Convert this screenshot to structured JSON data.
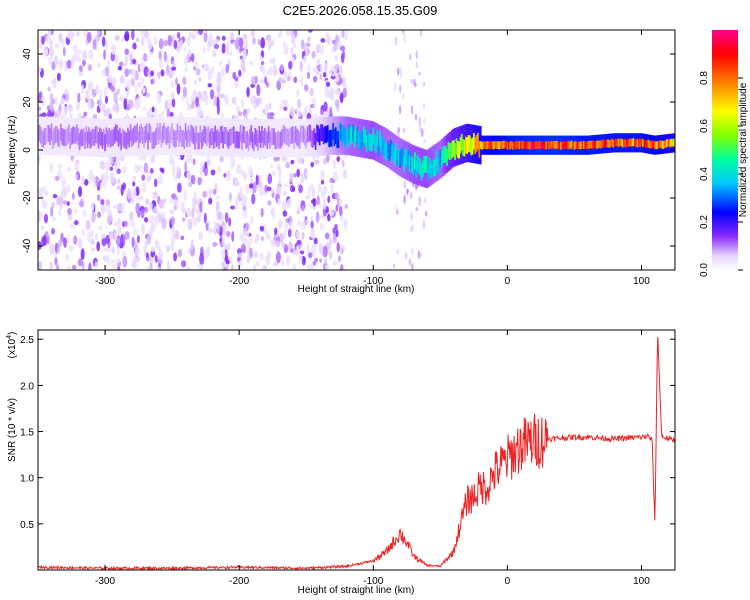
{
  "figure": {
    "title": "C2E5.2026.058.15.35.G09"
  },
  "chart_data": [
    {
      "type": "heatmap",
      "title": "C2E5.2026.058.15.35.G09",
      "xlabel": "Height of straight line (km)",
      "ylabel": "Frequency (Hz)",
      "xlim": [
        -350,
        125
      ],
      "ylim": [
        -50,
        50
      ],
      "x_ticks": [
        -300,
        -200,
        -100,
        0,
        100
      ],
      "y_ticks": [
        -40,
        -20,
        0,
        20,
        40
      ],
      "colorbar": {
        "label": "Normalized spectral amplitude",
        "range": [
          0,
          1
        ],
        "ticks": [
          0.0,
          0.2,
          0.4,
          0.6,
          0.8
        ],
        "colormap": [
          "#ffffff",
          "#e0ccff",
          "#6000ff",
          "#0000ff",
          "#00ffff",
          "#00ff00",
          "#ffff00",
          "#ff8000",
          "#ff0000",
          "#ff00a0"
        ]
      },
      "ridge": {
        "x": [
          -350,
          -300,
          -250,
          -200,
          -150,
          -130,
          -120,
          -100,
          -90,
          -80,
          -70,
          -60,
          -50,
          -40,
          -30,
          -20,
          -10,
          0,
          20,
          40,
          60,
          80,
          100,
          110,
          125
        ],
        "y": [
          6,
          5,
          6,
          5,
          5,
          6,
          6,
          4,
          1,
          -3,
          -6,
          -8,
          -4,
          1,
          3,
          2,
          2,
          2,
          2,
          2,
          2,
          3,
          3,
          2,
          3
        ],
        "amplitude": [
          0.1,
          0.12,
          0.1,
          0.12,
          0.1,
          0.3,
          0.4,
          0.45,
          0.4,
          0.4,
          0.45,
          0.45,
          0.4,
          0.6,
          0.7,
          0.8,
          0.85,
          0.9,
          0.95,
          0.95,
          0.9,
          0.9,
          0.9,
          0.85,
          0.8
        ]
      },
      "noise_region_km": [
        -350,
        -120
      ]
    },
    {
      "type": "line",
      "xlabel": "Height of straight line (km)",
      "ylabel": "SNR (10 * v/v)",
      "y_exponent_label": "(x10",
      "y_exponent": "4",
      "y_exponent_close": ")",
      "xlim": [
        -350,
        125
      ],
      "ylim": [
        0,
        2.6
      ],
      "x_ticks": [
        -300,
        -200,
        -100,
        0,
        100
      ],
      "y_ticks": [
        0.5,
        1.0,
        1.5,
        2.0,
        2.5
      ],
      "color": "#ee2222",
      "series": [
        {
          "x": [
            -350,
            -300,
            -250,
            -200,
            -150,
            -120,
            -100,
            -90,
            -85,
            -80,
            -75,
            -70,
            -60,
            -50,
            -40,
            -35,
            -30,
            -25,
            -20,
            -15,
            -10,
            0,
            10,
            20,
            30,
            40,
            50,
            60,
            70,
            80,
            90,
            100,
            105,
            108,
            110,
            112,
            115,
            120,
            125
          ],
          "y": [
            0.03,
            0.02,
            0.02,
            0.03,
            0.02,
            0.04,
            0.1,
            0.2,
            0.3,
            0.4,
            0.3,
            0.15,
            0.05,
            0.04,
            0.2,
            0.5,
            0.75,
            0.8,
            0.9,
            0.9,
            1.05,
            1.2,
            1.35,
            1.4,
            1.42,
            1.43,
            1.44,
            1.44,
            1.43,
            1.42,
            1.43,
            1.44,
            1.45,
            1.4,
            0.5,
            2.6,
            1.45,
            1.42,
            1.4
          ]
        }
      ]
    }
  ]
}
